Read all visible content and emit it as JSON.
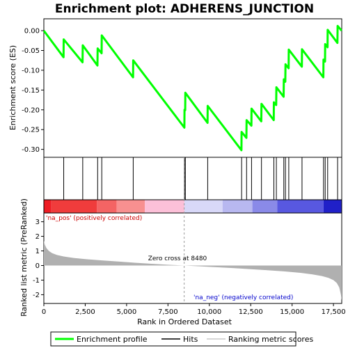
{
  "chart_data": {
    "type": "line",
    "title": "Enrichment plot: ADHERENS_JUNCTION",
    "xlabel": "Rank in Ordered Dataset",
    "ylabel_top": "Enrichment score (ES)",
    "ylabel_bottom": "Ranked list metric (PreRanked)",
    "xlim": [
      0,
      18000
    ],
    "x_ticks": [
      0,
      2500,
      5000,
      7500,
      10000,
      12500,
      15000,
      17500
    ],
    "x_tick_labels": [
      "0",
      "2,500",
      "5,000",
      "7,500",
      "10,000",
      "12,500",
      "15,000",
      "17,500"
    ],
    "es_ylim": [
      -0.32,
      0.03
    ],
    "es_ticks": [
      0.0,
      -0.05,
      -0.1,
      -0.15,
      -0.2,
      -0.25,
      -0.3
    ],
    "es_tick_labels": [
      "0.00",
      "-0.05",
      "-0.10",
      "-0.15",
      "-0.20",
      "-0.25",
      "-0.30"
    ],
    "metric_ylim": [
      -2.6,
      3.6
    ],
    "metric_ticks": [
      3,
      2,
      1,
      0,
      -1,
      -2
    ],
    "metric_tick_labels": [
      "3",
      "2",
      "1",
      "0",
      "-1",
      "-2"
    ],
    "hits": [
      1200,
      2350,
      3250,
      3500,
      5400,
      8500,
      8550,
      9900,
      11950,
      12250,
      12550,
      13150,
      13900,
      14050,
      14500,
      14600,
      14800,
      15600,
      16900,
      17000,
      17150,
      17750
    ],
    "es_series": {
      "name": "Enrichment profile",
      "x": [
        0,
        1190,
        1200,
        2340,
        2350,
        3240,
        3250,
        3490,
        3500,
        5390,
        5400,
        8490,
        8500,
        8540,
        8550,
        9890,
        9900,
        11940,
        11950,
        12240,
        12250,
        12540,
        12550,
        13140,
        13150,
        13890,
        13900,
        14040,
        14050,
        14490,
        14500,
        14590,
        14600,
        14790,
        14800,
        15590,
        15600,
        16890,
        16900,
        16990,
        17000,
        17140,
        17150,
        17740,
        17750,
        17990
      ],
      "y": [
        0.0,
        -0.067,
        -0.022,
        -0.08,
        -0.037,
        -0.088,
        -0.045,
        -0.057,
        -0.012,
        -0.118,
        -0.075,
        -0.245,
        -0.2,
        -0.201,
        -0.157,
        -0.233,
        -0.19,
        -0.302,
        -0.256,
        -0.271,
        -0.226,
        -0.24,
        -0.197,
        -0.229,
        -0.185,
        -0.226,
        -0.181,
        -0.188,
        -0.143,
        -0.167,
        -0.123,
        -0.129,
        -0.085,
        -0.095,
        -0.048,
        -0.091,
        -0.047,
        -0.118,
        -0.073,
        -0.078,
        -0.034,
        -0.042,
        0.002,
        -0.031,
        0.012,
        0.0
      ]
    },
    "metric_series": {
      "name": "Ranking metric scores",
      "x": [
        0,
        50,
        150,
        300,
        500,
        800,
        1200,
        1800,
        2500,
        3500,
        4500,
        5500,
        6500,
        7500,
        8480,
        9500,
        10500,
        11500,
        12500,
        13500,
        14500,
        15500,
        16200,
        16800,
        17200,
        17500,
        17700,
        17850,
        17950,
        18000
      ],
      "y": [
        1.7,
        1.45,
        1.2,
        1.0,
        0.85,
        0.72,
        0.62,
        0.52,
        0.44,
        0.35,
        0.27,
        0.19,
        0.12,
        0.05,
        0.0,
        -0.06,
        -0.12,
        -0.18,
        -0.25,
        -0.32,
        -0.4,
        -0.5,
        -0.6,
        -0.72,
        -0.85,
        -1.0,
        -1.2,
        -1.5,
        -2.0,
        -2.4
      ]
    },
    "annotations": {
      "pos": "'na_pos' (positively correlated)",
      "neg": "'na_neg' (negatively correlated)",
      "zero": "Zero cross at 8480",
      "zero_x": 8480
    },
    "heatmap_bands": [
      {
        "from": 0,
        "to": 450,
        "color": "#ee1c24"
      },
      {
        "from": 450,
        "to": 3200,
        "color": "#f03c3c"
      },
      {
        "from": 3200,
        "to": 4400,
        "color": "#f46464"
      },
      {
        "from": 4400,
        "to": 6100,
        "color": "#f89090"
      },
      {
        "from": 6100,
        "to": 8500,
        "color": "#fcc0d8"
      },
      {
        "from": 8500,
        "to": 10800,
        "color": "#d8d8f8"
      },
      {
        "from": 10800,
        "to": 12600,
        "color": "#b8b8f0"
      },
      {
        "from": 12600,
        "to": 14100,
        "color": "#8a8ae8"
      },
      {
        "from": 14100,
        "to": 16900,
        "color": "#5858e0"
      },
      {
        "from": 16900,
        "to": 18000,
        "color": "#2020c8"
      }
    ],
    "colors": {
      "es_line": "#00ff00",
      "hits": "#000000",
      "metric_fill": "#b0b0b0",
      "pos_text": "#cc0000",
      "neg_text": "#0000cc"
    },
    "legend": {
      "items": [
        {
          "label": "Enrichment profile",
          "kind": "green-line"
        },
        {
          "label": "Hits",
          "kind": "black-line"
        },
        {
          "label": "Ranking metric scores",
          "kind": "gray-line"
        }
      ]
    }
  }
}
